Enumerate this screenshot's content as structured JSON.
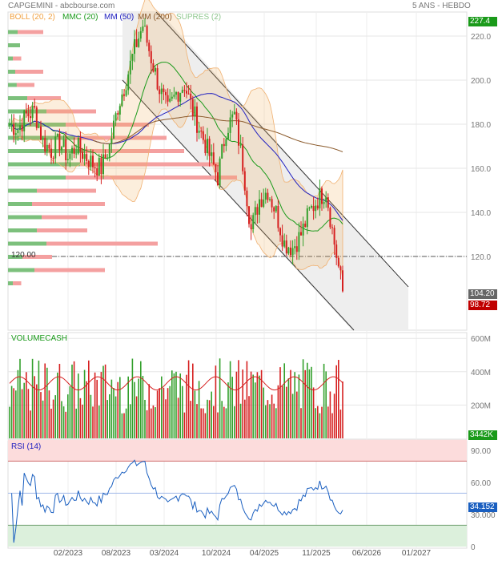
{
  "header": {
    "title": "CAPGEMINI - abcbourse.com",
    "period": "5 ANS - HEBDO"
  },
  "legend": [
    {
      "label": "BOLL (20, 2)",
      "color": "#f0a040"
    },
    {
      "label": "MMC (20)",
      "color": "#1a9a1a"
    },
    {
      "label": "MM (50)",
      "color": "#2020c0"
    },
    {
      "label": "MM (200)",
      "color": "#8b5a2b"
    },
    {
      "label": "SUPRES (2)",
      "color": "#90c890"
    }
  ],
  "tags": {
    "high": "227.4",
    "last": "104.20",
    "low": "98.72",
    "volume": "3442K",
    "rsi": "34.152",
    "level": "120.00"
  },
  "panels": {
    "volume": "VOLUMECASH",
    "rsi": "RSI (14)"
  },
  "colors": {
    "up": "#33a02c",
    "down": "#d62020",
    "bg_zone": "#eeeeee"
  },
  "chart_data": {
    "type": "candlestick",
    "price_axis": {
      "ticks": [
        "220.0",
        "200.0",
        "180.0",
        "160.0",
        "140.0",
        "120.0"
      ],
      "values": [
        220,
        200,
        180,
        160,
        140,
        120
      ]
    },
    "volume_axis": {
      "ticks": [
        "600M",
        "400M",
        "200M"
      ],
      "values": [
        600,
        400,
        200
      ]
    },
    "rsi_axis": {
      "ticks": [
        "90.00",
        "60.00",
        "30.000",
        "0"
      ],
      "values": [
        90,
        60,
        30,
        0
      ],
      "overbought": 80,
      "oversold": 20,
      "mid": 50
    },
    "x_ticks": [
      "02/2023",
      "08/2023",
      "03/2024",
      "10/2024",
      "04/2025",
      "11/2025",
      "06/2026",
      "01/2027"
    ],
    "monthly_close": [
      180,
      178,
      184,
      186,
      172,
      168,
      172,
      165,
      170,
      166,
      162,
      160,
      170,
      188,
      200,
      214,
      225,
      210,
      196,
      186,
      194,
      198,
      186,
      176,
      166,
      156,
      178,
      184,
      162,
      132,
      146,
      150,
      140,
      126,
      124,
      130,
      140,
      146,
      150,
      126,
      104.2
    ],
    "volume_profile": [
      {
        "price": 222,
        "up": 20,
        "down": 40
      },
      {
        "price": 216,
        "up": 25,
        "down": 10
      },
      {
        "price": 210,
        "up": 10,
        "down": 15
      },
      {
        "price": 204,
        "up": 15,
        "down": 40
      },
      {
        "price": 198,
        "up": 18,
        "down": 30
      },
      {
        "price": 192,
        "up": 40,
        "down": 60
      },
      {
        "price": 186,
        "up": 80,
        "down": 100
      },
      {
        "price": 180,
        "up": 120,
        "down": 160
      },
      {
        "price": 174,
        "up": 140,
        "down": 180
      },
      {
        "price": 168,
        "up": 160,
        "down": 200
      },
      {
        "price": 162,
        "up": 150,
        "down": 240
      },
      {
        "price": 156,
        "up": 120,
        "down": 260
      },
      {
        "price": 150,
        "up": 60,
        "down": 100
      },
      {
        "price": 144,
        "up": 50,
        "down": 110
      },
      {
        "price": 138,
        "up": 70,
        "down": 90
      },
      {
        "price": 132,
        "up": 60,
        "down": 90
      },
      {
        "price": 126,
        "up": 80,
        "down": 170
      },
      {
        "price": 120,
        "up": 30,
        "down": 50
      },
      {
        "price": 114,
        "up": 55,
        "down": 110
      },
      {
        "price": 108,
        "up": 10,
        "down": 15
      }
    ]
  }
}
